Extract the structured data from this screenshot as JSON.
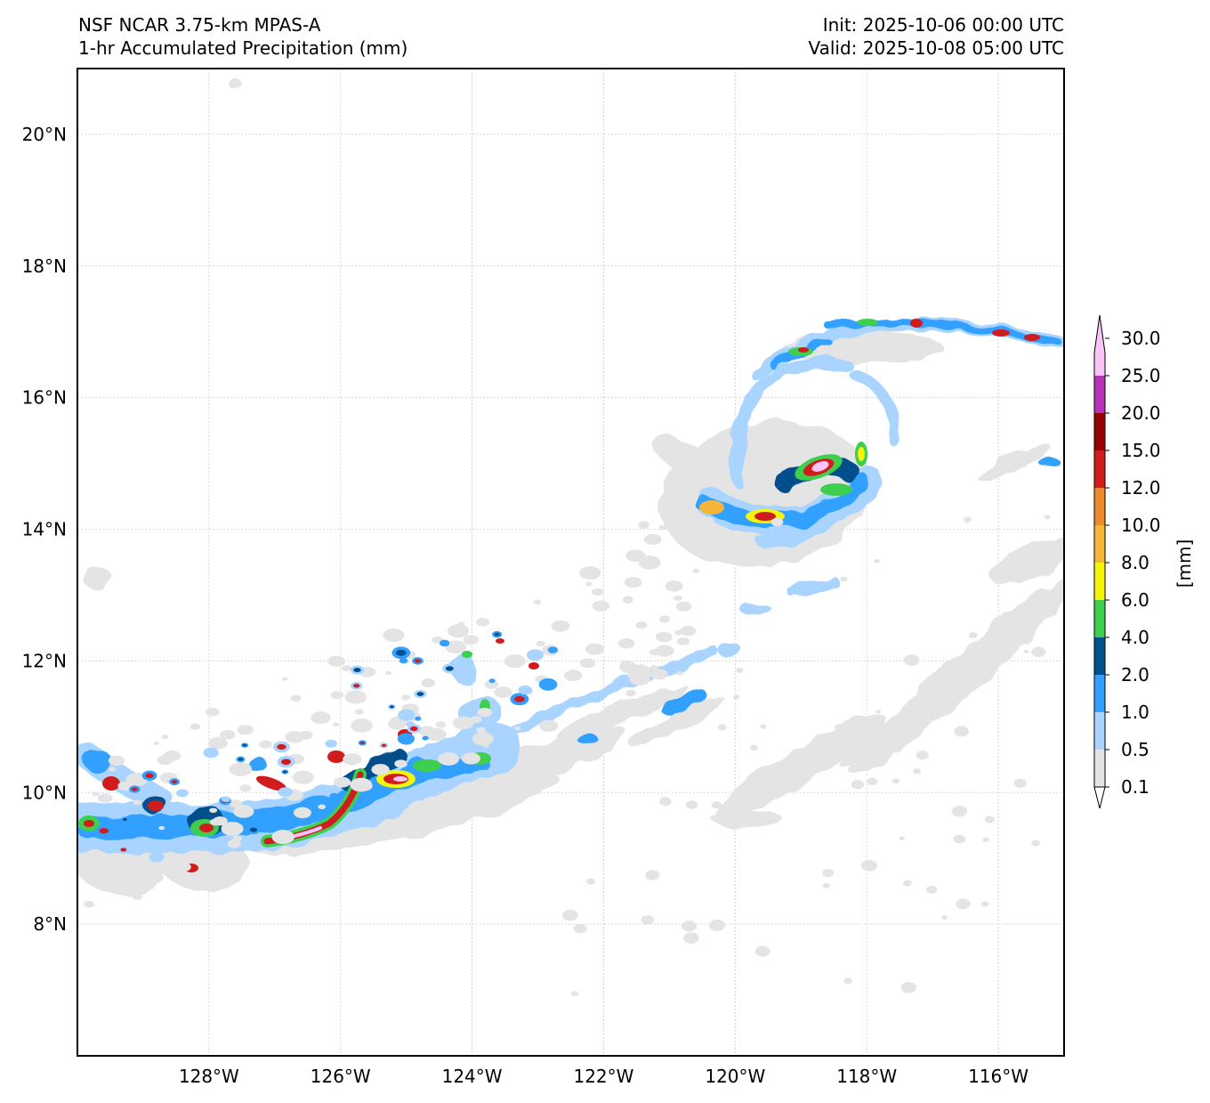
{
  "header": {
    "left_line1": "NSF NCAR 3.75-km MPAS-A",
    "left_line2": "1-hr Accumulated Precipitation (mm)",
    "right_line1": "Init: 2025-10-06 00:00 UTC",
    "right_line2": "Valid: 2025-10-08 05:00 UTC"
  },
  "map": {
    "lon_range": [
      -130.0,
      -115.0
    ],
    "lat_range": [
      6.0,
      21.0
    ],
    "gridlines": true,
    "lat_ticks": [
      {
        "value": 20,
        "label": "20°N"
      },
      {
        "value": 18,
        "label": "18°N"
      },
      {
        "value": 16,
        "label": "16°N"
      },
      {
        "value": 14,
        "label": "14°N"
      },
      {
        "value": 12,
        "label": "12°N"
      },
      {
        "value": 10,
        "label": "10°N"
      },
      {
        "value": 8,
        "label": "8°N"
      }
    ],
    "lon_ticks": [
      {
        "value": -128,
        "label": "128°W"
      },
      {
        "value": -126,
        "label": "126°W"
      },
      {
        "value": -124,
        "label": "124°W"
      },
      {
        "value": -122,
        "label": "122°W"
      },
      {
        "value": -120,
        "label": "120°W"
      },
      {
        "value": -118,
        "label": "118°W"
      },
      {
        "value": -116,
        "label": "116°W"
      }
    ],
    "features": {
      "cyclone_center": {
        "lon": -118.9,
        "lat": 14.9
      },
      "itcz_band": [
        {
          "lon": -130.0,
          "lat": 9.5
        },
        {
          "lon": -128.0,
          "lat": 9.4
        },
        {
          "lon": -126.0,
          "lat": 9.7
        },
        {
          "lon": -124.5,
          "lat": 10.3
        },
        {
          "lon": -123.0,
          "lat": 11.0
        },
        {
          "lon": -121.0,
          "lat": 11.8
        },
        {
          "lon": -119.5,
          "lat": 12.8
        }
      ]
    }
  },
  "colorbar": {
    "unit_label": "[mm]",
    "ticks": [
      "0.1",
      "0.5",
      "1.0",
      "2.0",
      "4.0",
      "6.0",
      "8.0",
      "10.0",
      "12.0",
      "15.0",
      "20.0",
      "25.0",
      "30.0"
    ],
    "colors": [
      "#e4e4e4",
      "#a8d4ff",
      "#33a0ff",
      "#00508c",
      "#3fcf4f",
      "#f5f50a",
      "#f5b63a",
      "#ec8a2e",
      "#d01c1c",
      "#960000",
      "#b733b6",
      "#f9c4f7"
    ]
  }
}
